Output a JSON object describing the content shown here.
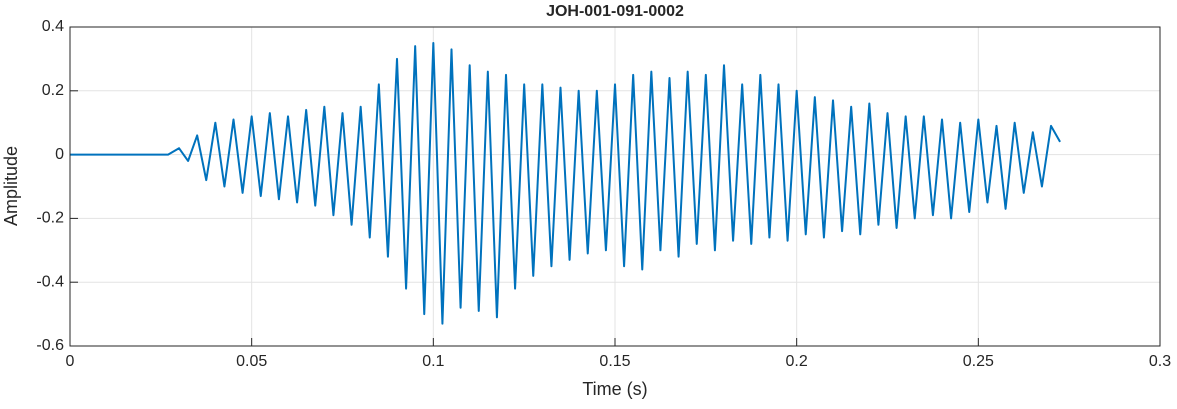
{
  "chart_data": {
    "type": "line",
    "title": "JOH-001-091-0002",
    "x_label": "Time (s)",
    "y_label": "Amplitude",
    "xlim": [
      0,
      0.3
    ],
    "ylim": [
      -0.6,
      0.4
    ],
    "xticks": [
      0,
      0.05,
      0.1,
      0.15,
      0.2,
      0.25,
      0.3
    ],
    "yticks": [
      -0.6,
      -0.4,
      -0.2,
      0,
      0.2,
      0.4
    ],
    "grid": true,
    "series": [
      {
        "color": "#0072bd",
        "x": [
          0,
          0.01,
          0.02,
          0.027,
          0.03,
          0.0325,
          0.035,
          0.0375,
          0.04,
          0.0425,
          0.045,
          0.0475,
          0.05,
          0.0525,
          0.055,
          0.0575,
          0.06,
          0.0625,
          0.065,
          0.0675,
          0.07,
          0.0725,
          0.075,
          0.0775,
          0.08,
          0.0825,
          0.085,
          0.0875,
          0.09,
          0.0925,
          0.095,
          0.0975,
          0.1,
          0.1025,
          0.105,
          0.1075,
          0.11,
          0.1125,
          0.115,
          0.1175,
          0.12,
          0.1225,
          0.125,
          0.1275,
          0.13,
          0.1325,
          0.135,
          0.1375,
          0.14,
          0.1425,
          0.145,
          0.1475,
          0.15,
          0.1525,
          0.155,
          0.1575,
          0.16,
          0.1625,
          0.165,
          0.1675,
          0.17,
          0.1725,
          0.175,
          0.1775,
          0.18,
          0.1825,
          0.185,
          0.1875,
          0.19,
          0.1925,
          0.195,
          0.1975,
          0.2,
          0.2025,
          0.205,
          0.2075,
          0.21,
          0.2125,
          0.215,
          0.2175,
          0.22,
          0.2225,
          0.225,
          0.2275,
          0.23,
          0.2325,
          0.235,
          0.2375,
          0.24,
          0.2425,
          0.245,
          0.2475,
          0.25,
          0.2525,
          0.255,
          0.2575,
          0.26,
          0.2625,
          0.265,
          0.2675,
          0.27,
          0.2725
        ],
        "values": [
          0,
          0,
          0,
          0,
          0.02,
          -0.02,
          0.06,
          -0.08,
          0.1,
          -0.1,
          0.11,
          -0.12,
          0.12,
          -0.13,
          0.13,
          -0.14,
          0.12,
          -0.15,
          0.14,
          -0.16,
          0.15,
          -0.19,
          0.13,
          -0.22,
          0.15,
          -0.26,
          0.22,
          -0.32,
          0.3,
          -0.42,
          0.34,
          -0.5,
          0.35,
          -0.53,
          0.33,
          -0.48,
          0.28,
          -0.49,
          0.26,
          -0.51,
          0.25,
          -0.42,
          0.22,
          -0.38,
          0.22,
          -0.35,
          0.21,
          -0.33,
          0.2,
          -0.31,
          0.2,
          -0.3,
          0.22,
          -0.35,
          0.25,
          -0.36,
          0.26,
          -0.3,
          0.24,
          -0.32,
          0.26,
          -0.28,
          0.25,
          -0.3,
          0.28,
          -0.27,
          0.22,
          -0.28,
          0.25,
          -0.26,
          0.22,
          -0.27,
          0.2,
          -0.25,
          0.18,
          -0.26,
          0.17,
          -0.24,
          0.15,
          -0.25,
          0.16,
          -0.22,
          0.13,
          -0.23,
          0.12,
          -0.2,
          0.12,
          -0.19,
          0.11,
          -0.2,
          0.1,
          -0.18,
          0.11,
          -0.15,
          0.09,
          -0.17,
          0.1,
          -0.12,
          0.07,
          -0.1,
          0.09,
          0.04
        ]
      }
    ]
  }
}
